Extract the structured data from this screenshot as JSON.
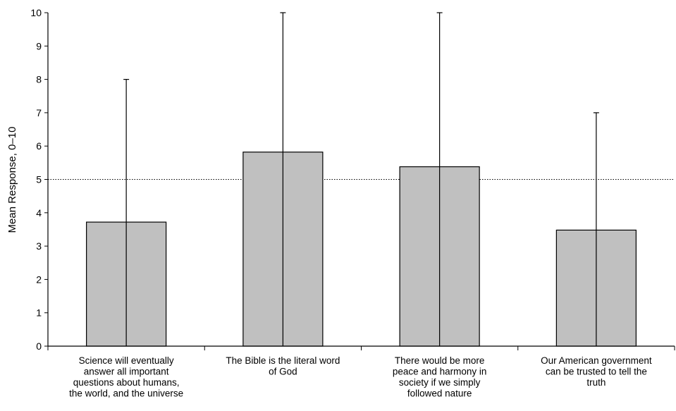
{
  "chart_data": {
    "type": "bar",
    "title": "",
    "xlabel": "",
    "ylabel": "Mean Response, 0–10",
    "ylim": [
      0,
      10
    ],
    "yticks": [
      "0",
      "1",
      "2",
      "3",
      "4",
      "5",
      "6",
      "7",
      "8",
      "9",
      "10"
    ],
    "reference_line": 5,
    "grid": false,
    "categories": [
      [
        "Science will eventually",
        "answer all important",
        "questions about humans,",
        "the world, and the universe"
      ],
      [
        "The Bible is the literal word",
        "of God"
      ],
      [
        "There would be more",
        "peace and harmony in",
        "society if we simply",
        "followed nature"
      ],
      [
        "Our American government",
        "can be trusted to tell the",
        "truth"
      ]
    ],
    "values": [
      3.72,
      5.82,
      5.38,
      3.48
    ],
    "error_high": [
      8,
      10,
      10,
      7
    ],
    "error_low": [
      0,
      0,
      0,
      0
    ],
    "colors": {
      "bar_fill": "#c0c0c0",
      "bar_stroke": "#000000",
      "axis": "#000000"
    }
  }
}
